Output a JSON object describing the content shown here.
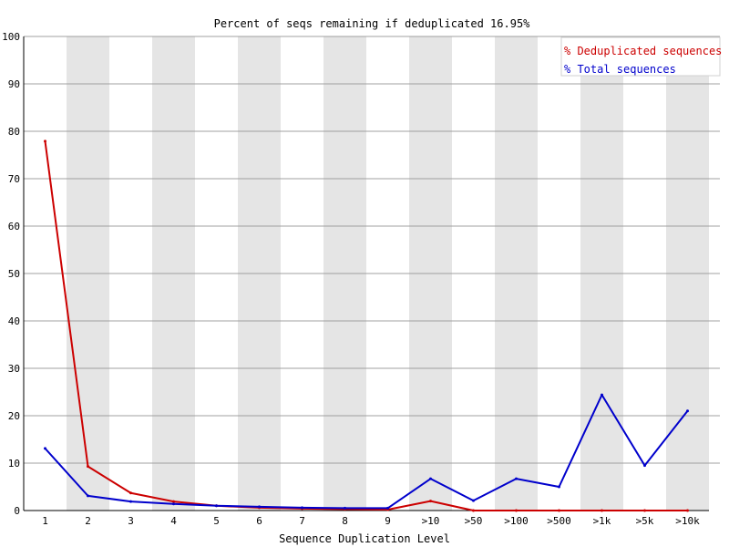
{
  "chart_data": {
    "type": "line",
    "title": "Percent of seqs remaining if deduplicated 16.95%",
    "xlabel": "Sequence Duplication Level",
    "ylabel": "",
    "ylim": [
      0,
      100
    ],
    "yticks": [
      0,
      10,
      20,
      30,
      40,
      50,
      60,
      70,
      80,
      90,
      100
    ],
    "grid": true,
    "legend_position": "top-right",
    "categories": [
      "1",
      "2",
      "3",
      "4",
      "5",
      "6",
      "7",
      "8",
      "9",
      ">10",
      ">50",
      ">100",
      ">500",
      ">1k",
      ">5k",
      ">10k"
    ],
    "series": [
      {
        "name": "% Deduplicated sequences",
        "color": "#cc0000",
        "values": [
          77.9,
          9.3,
          3.7,
          1.9,
          1.0,
          0.6,
          0.4,
          0.3,
          0.2,
          2.0,
          0.0,
          0.0,
          0.0,
          0.0,
          0.0,
          0.0
        ]
      },
      {
        "name": "% Total sequences",
        "color": "#0000cc",
        "values": [
          13.1,
          3.1,
          1.9,
          1.4,
          1.0,
          0.8,
          0.6,
          0.5,
          0.5,
          6.7,
          2.1,
          6.7,
          5.0,
          24.4,
          9.5,
          21.0
        ]
      }
    ]
  }
}
